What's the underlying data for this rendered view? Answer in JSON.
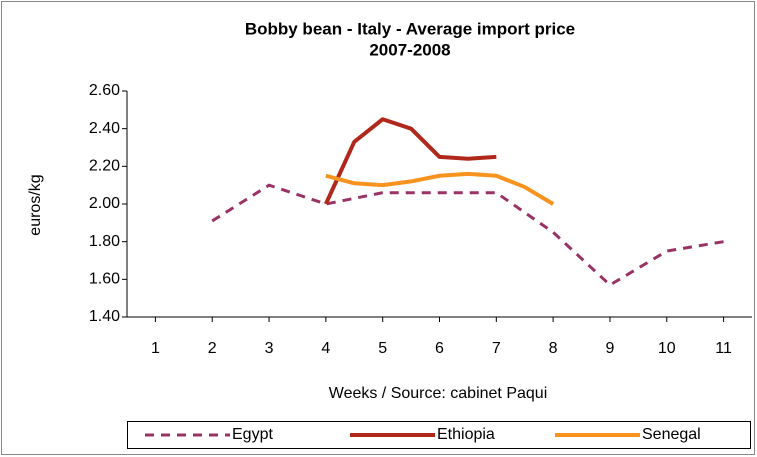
{
  "chart_data": {
    "type": "line",
    "title": "Bobby bean - Italy - Average import price",
    "subtitle": "2007-2008",
    "y_label": "euros/kg",
    "x_label": "Weeks / Source: cabinet Paqui",
    "xlim": [
      0.5,
      11.5
    ],
    "xticks": [
      1,
      2,
      3,
      4,
      5,
      6,
      7,
      8,
      9,
      10,
      11
    ],
    "ylim": [
      1.4,
      2.6
    ],
    "yticks": [
      {
        "value": 1.4,
        "label": "1.40"
      },
      {
        "value": 1.6,
        "label": "1.60"
      },
      {
        "value": 1.8,
        "label": "1.80"
      },
      {
        "value": 2.0,
        "label": "2.00"
      },
      {
        "value": 2.2,
        "label": "2.20"
      },
      {
        "value": 2.4,
        "label": "2.40"
      },
      {
        "value": 2.6,
        "label": "2.60"
      }
    ],
    "legend": "bottom",
    "series": [
      {
        "name": "Egypt",
        "color": "#993366",
        "dash": true,
        "x": [
          2,
          3,
          4,
          5,
          6,
          7,
          8,
          9,
          10,
          11
        ],
        "values": [
          1.91,
          2.1,
          2.0,
          2.06,
          2.06,
          2.06,
          1.85,
          1.57,
          1.75,
          1.8
        ]
      },
      {
        "name": "Ethiopia",
        "color": "#b0281c",
        "dash": false,
        "x": [
          4,
          4.5,
          5,
          5.5,
          6,
          6.5,
          7
        ],
        "values": [
          2.0,
          2.33,
          2.45,
          2.4,
          2.25,
          2.24,
          2.25
        ]
      },
      {
        "name": "Senegal",
        "color": "#f7931e",
        "dash": false,
        "x": [
          4,
          4.5,
          5,
          5.5,
          6,
          6.5,
          7,
          7.5,
          8
        ],
        "values": [
          2.15,
          2.11,
          2.1,
          2.12,
          2.15,
          2.16,
          2.15,
          2.09,
          2.0
        ]
      }
    ]
  }
}
